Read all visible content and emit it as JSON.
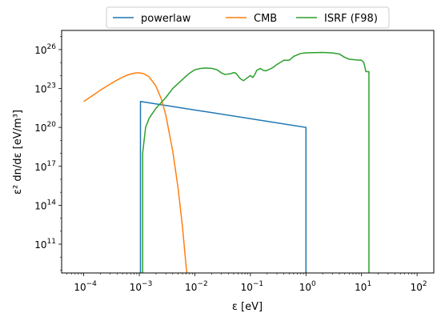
{
  "chart_data": {
    "type": "line",
    "title": "",
    "xlabel": "ε [eV]",
    "ylabel": "ε² dn/dε [eV/m³]",
    "xscale": "log",
    "yscale": "log",
    "xlim": [
      4e-05,
      200
    ],
    "ylim": [
      600000000.0,
      3e+27
    ],
    "legend": {
      "placement": "top-center-outside",
      "columns": 3
    },
    "grid": false,
    "x_ticks": [
      {
        "value": 0.0001,
        "base": "10",
        "exp": "−4"
      },
      {
        "value": 0.001,
        "base": "10",
        "exp": "−3"
      },
      {
        "value": 0.01,
        "base": "10",
        "exp": "−2"
      },
      {
        "value": 0.1,
        "base": "10",
        "exp": "−1"
      },
      {
        "value": 1,
        "base": "10",
        "exp": "0"
      },
      {
        "value": 10,
        "base": "10",
        "exp": "1"
      },
      {
        "value": 100,
        "base": "10",
        "exp": "2"
      }
    ],
    "y_ticks": [
      {
        "value": 100000000000.0,
        "base": "10",
        "exp": "11"
      },
      {
        "value": 100000000000000.0,
        "base": "10",
        "exp": "14"
      },
      {
        "value": 1e+17,
        "base": "10",
        "exp": "17"
      },
      {
        "value": 1e+20,
        "base": "10",
        "exp": "20"
      },
      {
        "value": 1e+23,
        "base": "10",
        "exp": "23"
      },
      {
        "value": 1e+26,
        "base": "10",
        "exp": "26"
      }
    ],
    "series": [
      {
        "name": "powerlaw",
        "color": "#1f77b4",
        "points": [
          [
            0.00105,
            600000000.0
          ],
          [
            0.00105,
            1e+22
          ],
          [
            1.0,
            1e+20
          ],
          [
            1.0,
            600000000.0
          ]
        ]
      },
      {
        "name": "CMB",
        "color": "#ff7f0e",
        "points": [
          [
            0.0001,
            1e+22
          ],
          [
            0.00015,
            3.2e+22
          ],
          [
            0.0002,
            7.5e+22
          ],
          [
            0.0003,
            2.2e+23
          ],
          [
            0.0004,
            4.5e+23
          ],
          [
            0.0005,
            7.5e+23
          ],
          [
            0.0006,
            1.05e+24
          ],
          [
            0.0007,
            1.3e+24
          ],
          [
            0.0008,
            1.5e+24
          ],
          [
            0.0009,
            1.6e+24
          ],
          [
            0.001,
            1.6e+24
          ],
          [
            0.0012,
            1.4e+24
          ],
          [
            0.0015,
            8e+23
          ],
          [
            0.002,
            1.5e+23
          ],
          [
            0.0025,
            1.5e+22
          ],
          [
            0.003,
            9e+20
          ],
          [
            0.004,
            1.5e+18
          ],
          [
            0.005,
            2000000000000000.0
          ],
          [
            0.006,
            2000000000000.0
          ],
          [
            0.007,
            1500000000.0
          ],
          [
            0.0072,
            600000000.0
          ]
        ]
      },
      {
        "name": "ISRF (F98)",
        "color": "#2ca02c",
        "points": [
          [
            0.00115,
            600000000.0
          ],
          [
            0.00115,
            1e+18
          ],
          [
            0.00122,
            1e+19
          ],
          [
            0.0013,
            1e+20
          ],
          [
            0.0015,
            5e+20
          ],
          [
            0.002,
            3e+21
          ],
          [
            0.003,
            2e+22
          ],
          [
            0.004,
            1e+23
          ],
          [
            0.006,
            5e+23
          ],
          [
            0.008,
            1.5e+24
          ],
          [
            0.01,
            2.8e+24
          ],
          [
            0.013,
            3.6e+24
          ],
          [
            0.016,
            3.8e+24
          ],
          [
            0.02,
            3.6e+24
          ],
          [
            0.025,
            2.8e+24
          ],
          [
            0.03,
            1.6e+24
          ],
          [
            0.035,
            1.2e+24
          ],
          [
            0.045,
            1.4e+24
          ],
          [
            0.05,
            1.7e+24
          ],
          [
            0.055,
            1.5e+24
          ],
          [
            0.065,
            6e+23
          ],
          [
            0.075,
            4e+23
          ],
          [
            0.085,
            6e+23
          ],
          [
            0.1,
            1e+24
          ],
          [
            0.11,
            7e+23
          ],
          [
            0.12,
            1.2e+24
          ],
          [
            0.13,
            2.5e+24
          ],
          [
            0.15,
            3.5e+24
          ],
          [
            0.17,
            2.5e+24
          ],
          [
            0.19,
            2.3e+24
          ],
          [
            0.22,
            3e+24
          ],
          [
            0.25,
            4e+24
          ],
          [
            0.3,
            7e+24
          ],
          [
            0.4,
            1.5e+25
          ],
          [
            0.5,
            1.5e+25
          ],
          [
            0.6,
            3e+25
          ],
          [
            0.8,
            5e+25
          ],
          [
            1,
            5.6e+25
          ],
          [
            2,
            6e+25
          ],
          [
            3,
            5.5e+25
          ],
          [
            4,
            4.5e+25
          ],
          [
            5,
            2.5e+25
          ],
          [
            6,
            1.8e+25
          ],
          [
            7,
            1.7e+25
          ],
          [
            8,
            1.6e+25
          ],
          [
            10,
            1.5e+25
          ],
          [
            11,
            1e+25
          ],
          [
            12,
            2e+24
          ],
          [
            13,
            2e+24
          ],
          [
            13.6,
            2e+24
          ],
          [
            13.6,
            600000000.0
          ]
        ]
      }
    ]
  }
}
